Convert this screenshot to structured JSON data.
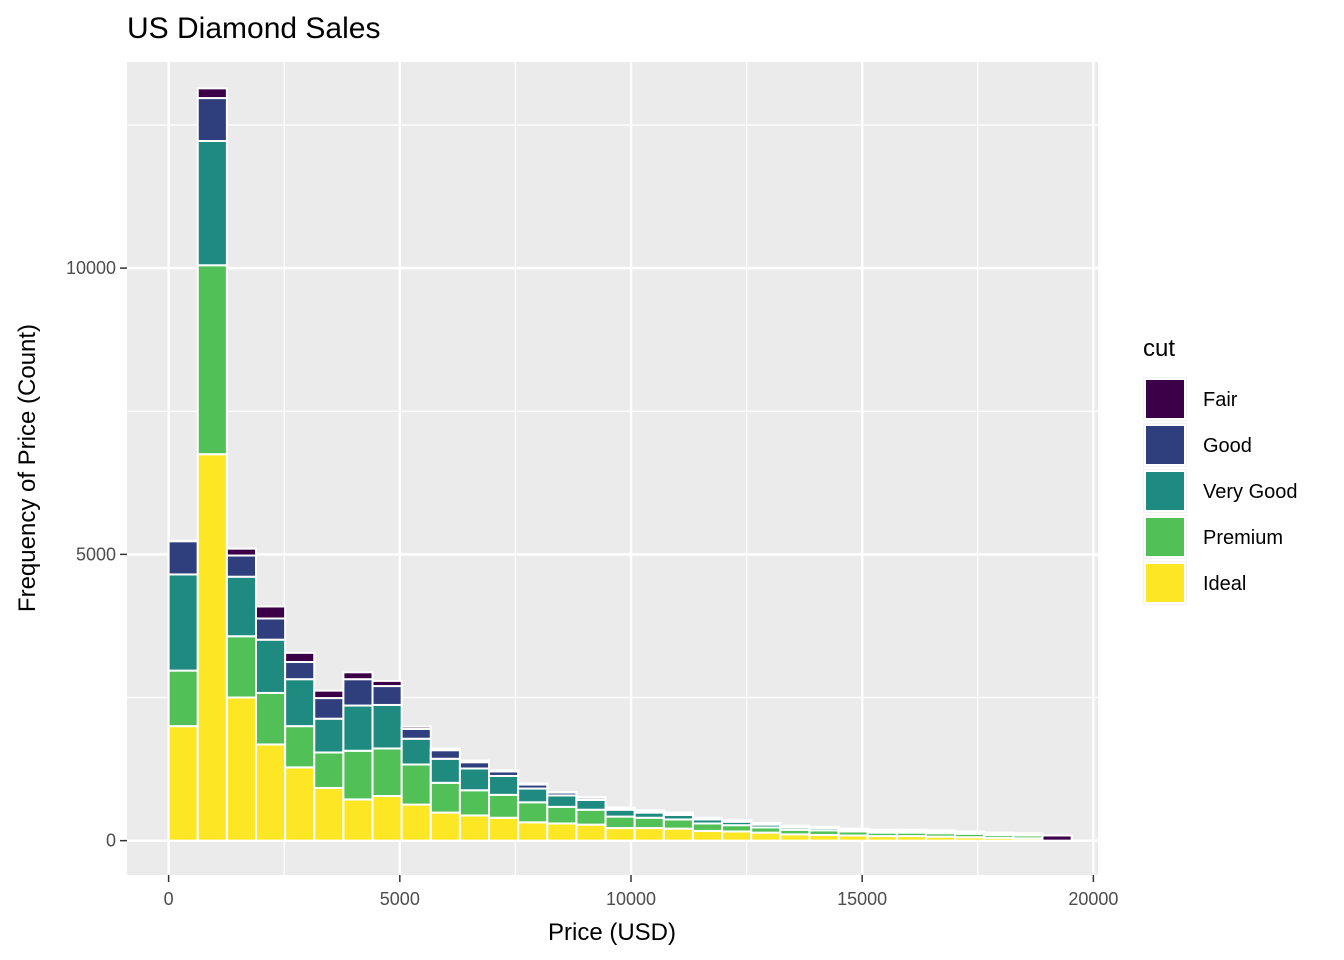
{
  "chart_data": {
    "type": "bar",
    "subtype": "stacked-histogram",
    "title": "US Diamond Sales",
    "xlabel": "Price (USD)",
    "ylabel": "Frequency of Price (Count)",
    "xlim": [
      -900,
      20100
    ],
    "ylim": [
      -600,
      13600
    ],
    "x_ticks": [
      0,
      5000,
      10000,
      15000,
      20000
    ],
    "x_tick_labels": [
      "0",
      "5000",
      "10000",
      "15000",
      "20000"
    ],
    "y_ticks": [
      0,
      5000,
      10000
    ],
    "y_tick_labels": [
      "0",
      "5000",
      "10000"
    ],
    "grid": true,
    "legend": {
      "title": "cut",
      "position": "right"
    },
    "bin_width": 630,
    "x": [
      0,
      630,
      1260,
      1890,
      2520,
      3150,
      3780,
      4410,
      5040,
      5670,
      6300,
      6930,
      7560,
      8190,
      8820,
      9450,
      10080,
      10710,
      11340,
      11970,
      12600,
      13230,
      13860,
      14490,
      15120,
      15750,
      16380,
      17010,
      17640,
      18270,
      18900
    ],
    "series": [
      {
        "name": "Ideal",
        "color": "#FDE725",
        "values": [
          2000,
          6750,
          2500,
          1680,
          1280,
          920,
          720,
          780,
          630,
          490,
          440,
          400,
          320,
          300,
          280,
          220,
          220,
          210,
          170,
          160,
          140,
          110,
          100,
          90,
          80,
          80,
          70,
          60,
          50,
          40,
          0
        ]
      },
      {
        "name": "Premium",
        "color": "#51C056",
        "values": [
          970,
          3300,
          1070,
          900,
          720,
          620,
          850,
          830,
          700,
          520,
          440,
          400,
          350,
          290,
          260,
          200,
          180,
          160,
          130,
          110,
          90,
          80,
          80,
          70,
          60,
          60,
          60,
          60,
          50,
          50,
          0
        ]
      },
      {
        "name": "Very Good",
        "color": "#1F8A80",
        "values": [
          1680,
          2170,
          1040,
          930,
          820,
          590,
          790,
          760,
          450,
          420,
          380,
          330,
          240,
          200,
          170,
          120,
          90,
          80,
          70,
          60,
          50,
          40,
          40,
          30,
          30,
          30,
          30,
          20,
          20,
          20,
          0
        ]
      },
      {
        "name": "Good",
        "color": "#2F3F7D",
        "values": [
          580,
          750,
          370,
          370,
          300,
          360,
          460,
          330,
          170,
          150,
          110,
          80,
          70,
          50,
          40,
          30,
          30,
          30,
          20,
          20,
          20,
          20,
          10,
          10,
          10,
          10,
          10,
          10,
          10,
          10,
          0
        ]
      },
      {
        "name": "Fair",
        "color": "#3B0048",
        "values": [
          10,
          170,
          120,
          210,
          160,
          130,
          120,
          90,
          40,
          30,
          30,
          20,
          20,
          10,
          10,
          10,
          10,
          10,
          10,
          10,
          10,
          10,
          10,
          10,
          10,
          10,
          10,
          10,
          10,
          10,
          90
        ]
      }
    ]
  }
}
